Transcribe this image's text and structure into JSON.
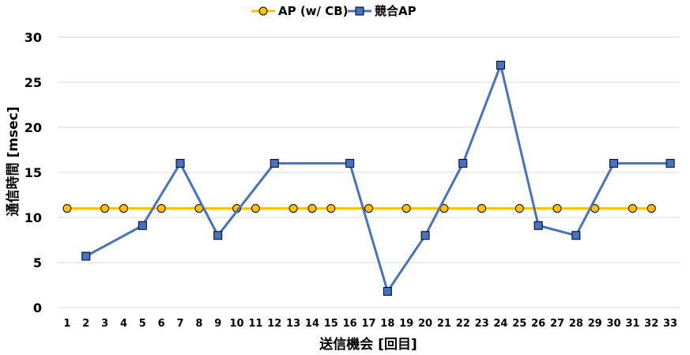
{
  "chart_data": {
    "type": "line",
    "xlabel": "送信機会 [回目]",
    "ylabel": "通信時間 [msec]",
    "ylim": [
      0,
      30
    ],
    "yticks": [
      0,
      5,
      10,
      15,
      20,
      25,
      30
    ],
    "grid": true,
    "legend_position": "top-center",
    "categories": [
      1,
      2,
      3,
      4,
      5,
      6,
      7,
      8,
      9,
      10,
      11,
      12,
      13,
      14,
      15,
      16,
      17,
      18,
      19,
      20,
      21,
      22,
      23,
      24,
      25,
      26,
      27,
      28,
      29,
      30,
      31,
      32,
      33
    ],
    "series": [
      {
        "name": "AP (w/ CB)",
        "color": "#FFC000",
        "marker": "circle",
        "points": [
          [
            1,
            11
          ],
          [
            3,
            11
          ],
          [
            4,
            11
          ],
          [
            6,
            11
          ],
          [
            8,
            11
          ],
          [
            10,
            11
          ],
          [
            11,
            11
          ],
          [
            13,
            11
          ],
          [
            14,
            11
          ],
          [
            15,
            11
          ],
          [
            17,
            11
          ],
          [
            19,
            11
          ],
          [
            21,
            11
          ],
          [
            23,
            11
          ],
          [
            25,
            11
          ],
          [
            27,
            11
          ],
          [
            29,
            11
          ],
          [
            31,
            11
          ],
          [
            32,
            11
          ]
        ]
      },
      {
        "name": "競合AP",
        "color": "#4472C4",
        "marker": "square",
        "points": [
          [
            2,
            5.7
          ],
          [
            5,
            9.1
          ],
          [
            7,
            16
          ],
          [
            9,
            8
          ],
          [
            12,
            16
          ],
          [
            16,
            16
          ],
          [
            18,
            1.8
          ],
          [
            20,
            8
          ],
          [
            22,
            16
          ],
          [
            24,
            26.9
          ],
          [
            26,
            9.1
          ],
          [
            28,
            8
          ],
          [
            30,
            16
          ],
          [
            33,
            16
          ]
        ]
      }
    ]
  }
}
